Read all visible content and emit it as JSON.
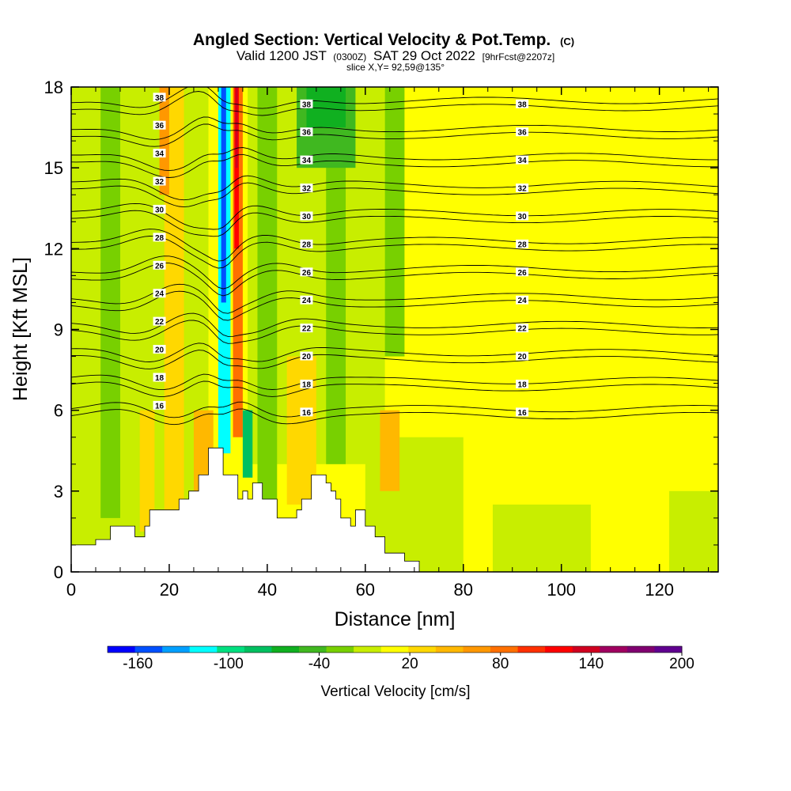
{
  "chart_data": {
    "type": "heatmap",
    "title": "Angled Section: Vertical Velocity & Pot.Temp.",
    "title_unit": "(C)",
    "subtitle_parts": {
      "valid": "Valid 1200 JST",
      "utc": "(0300Z)",
      "date": "SAT 29 Oct 2022",
      "fcst": "[9hrFcst@2207z]"
    },
    "slice_label": "slice X,Y= 92,59@135°",
    "xlabel": "Distance [nm]",
    "ylabel": "Height [Kft MSL]",
    "xlim": [
      0,
      132
    ],
    "ylim": [
      0,
      18
    ],
    "x_ticks": [
      "0",
      "20",
      "40",
      "60",
      "80",
      "100",
      "120"
    ],
    "y_ticks": [
      "0",
      "3",
      "6",
      "9",
      "12",
      "15",
      "18"
    ],
    "colorbar": {
      "label": "Vertical Velocity [cm/s]",
      "ticks": [
        "-160",
        "-100",
        "-40",
        "20",
        "80",
        "140",
        "200"
      ],
      "min": -180,
      "max": 200,
      "step": 20,
      "colors": [
        "#0000ff",
        "#0050ff",
        "#00a0ff",
        "#00ffff",
        "#00e080",
        "#00c060",
        "#10b020",
        "#40b820",
        "#78d000",
        "#c8ee00",
        "#ffff00",
        "#ffd800",
        "#ffb800",
        "#ff9800",
        "#ff7000",
        "#ff3000",
        "#ff0000",
        "#d00020",
        "#a00060",
        "#800070",
        "#600090"
      ]
    },
    "field": "vertical velocity (shaded), potential temperature (contours)",
    "theta_contours_C": [
      16,
      18,
      20,
      22,
      24,
      26,
      28,
      30,
      32,
      34,
      36,
      38
    ],
    "terrain_profile_kft": [
      [
        0,
        1.0
      ],
      [
        5,
        1.0
      ],
      [
        5,
        1.2
      ],
      [
        8,
        1.2
      ],
      [
        8,
        1.7
      ],
      [
        13,
        1.7
      ],
      [
        13,
        1.3
      ],
      [
        15,
        1.3
      ],
      [
        15,
        1.7
      ],
      [
        16,
        1.7
      ],
      [
        16,
        2.3
      ],
      [
        22,
        2.3
      ],
      [
        22,
        2.7
      ],
      [
        24,
        2.7
      ],
      [
        24,
        3.0
      ],
      [
        26,
        3.0
      ],
      [
        26,
        3.6
      ],
      [
        28,
        3.6
      ],
      [
        28,
        4.6
      ],
      [
        31,
        4.6
      ],
      [
        31,
        3.6
      ],
      [
        34,
        3.6
      ],
      [
        34,
        2.7
      ],
      [
        35,
        2.7
      ],
      [
        35,
        3.0
      ],
      [
        36,
        3.0
      ],
      [
        36,
        2.7
      ],
      [
        37,
        2.7
      ],
      [
        37,
        3.3
      ],
      [
        39,
        3.3
      ],
      [
        39,
        2.7
      ],
      [
        42,
        2.7
      ],
      [
        42,
        2.0
      ],
      [
        46,
        2.0
      ],
      [
        46,
        2.3
      ],
      [
        47,
        2.3
      ],
      [
        47,
        2.7
      ],
      [
        49,
        2.7
      ],
      [
        49,
        3.6
      ],
      [
        52,
        3.6
      ],
      [
        52,
        3.3
      ],
      [
        53,
        3.3
      ],
      [
        53,
        3.0
      ],
      [
        54,
        3.0
      ],
      [
        54,
        2.7
      ],
      [
        55,
        2.7
      ],
      [
        55,
        2.0
      ],
      [
        57,
        2.0
      ],
      [
        57,
        1.7
      ],
      [
        58,
        1.7
      ],
      [
        58,
        2.3
      ],
      [
        60,
        2.3
      ],
      [
        60,
        1.7
      ],
      [
        62,
        1.7
      ],
      [
        62,
        1.3
      ],
      [
        64,
        1.3
      ],
      [
        64,
        0.7
      ],
      [
        68,
        0.7
      ],
      [
        68,
        0.4
      ],
      [
        71,
        0.4
      ],
      [
        71,
        0.0
      ]
    ],
    "w_cells_cm_s": [
      {
        "x": [
          0,
          132
        ],
        "z": [
          0,
          18
        ],
        "w": 20
      },
      {
        "x": [
          0,
          28
        ],
        "z": [
          0,
          18
        ],
        "w": 0
      },
      {
        "x": [
          36,
          64
        ],
        "z": [
          4,
          18
        ],
        "w": 0
      },
      {
        "x": [
          60,
          80
        ],
        "z": [
          0,
          5
        ],
        "w": 0
      },
      {
        "x": [
          86,
          106
        ],
        "z": [
          0,
          2.5
        ],
        "w": 0
      },
      {
        "x": [
          122,
          132
        ],
        "z": [
          0,
          3
        ],
        "w": 0
      },
      {
        "x": [
          14,
          17
        ],
        "z": [
          1.5,
          6
        ],
        "w": 40
      },
      {
        "x": [
          19,
          23
        ],
        "z": [
          0,
          18
        ],
        "w": 40
      },
      {
        "x": [
          25,
          29
        ],
        "z": [
          3,
          6
        ],
        "w": 60
      },
      {
        "x": [
          44,
          50
        ],
        "z": [
          2.5,
          8
        ],
        "w": 40
      },
      {
        "x": [
          63,
          67
        ],
        "z": [
          3,
          6
        ],
        "w": 60
      },
      {
        "x": [
          18,
          20
        ],
        "z": [
          14,
          18
        ],
        "w": 80
      },
      {
        "x": [
          6,
          10
        ],
        "z": [
          2,
          18
        ],
        "w": -20
      },
      {
        "x": [
          38,
          42
        ],
        "z": [
          2,
          18
        ],
        "w": -20
      },
      {
        "x": [
          52,
          56
        ],
        "z": [
          4,
          18
        ],
        "w": -20
      },
      {
        "x": [
          64,
          68
        ],
        "z": [
          8,
          18
        ],
        "w": -20
      },
      {
        "x": [
          46,
          58
        ],
        "z": [
          15,
          18
        ],
        "w": -40
      },
      {
        "x": [
          48,
          56
        ],
        "z": [
          16.5,
          18
        ],
        "w": -60
      },
      {
        "x": [
          30,
          32.5
        ],
        "z": [
          4.4,
          18
        ],
        "w": -120
      },
      {
        "x": [
          30.6,
          31.6
        ],
        "z": [
          10,
          18
        ],
        "w": -160
      },
      {
        "x": [
          33,
          35
        ],
        "z": [
          5,
          18
        ],
        "w": 100
      },
      {
        "x": [
          33.3,
          34.2
        ],
        "z": [
          12,
          18
        ],
        "w": 140
      },
      {
        "x": [
          33.5,
          34
        ],
        "z": [
          15,
          18
        ],
        "w": 160
      },
      {
        "x": [
          35,
          37
        ],
        "z": [
          3.5,
          6
        ],
        "w": -80
      }
    ]
  }
}
